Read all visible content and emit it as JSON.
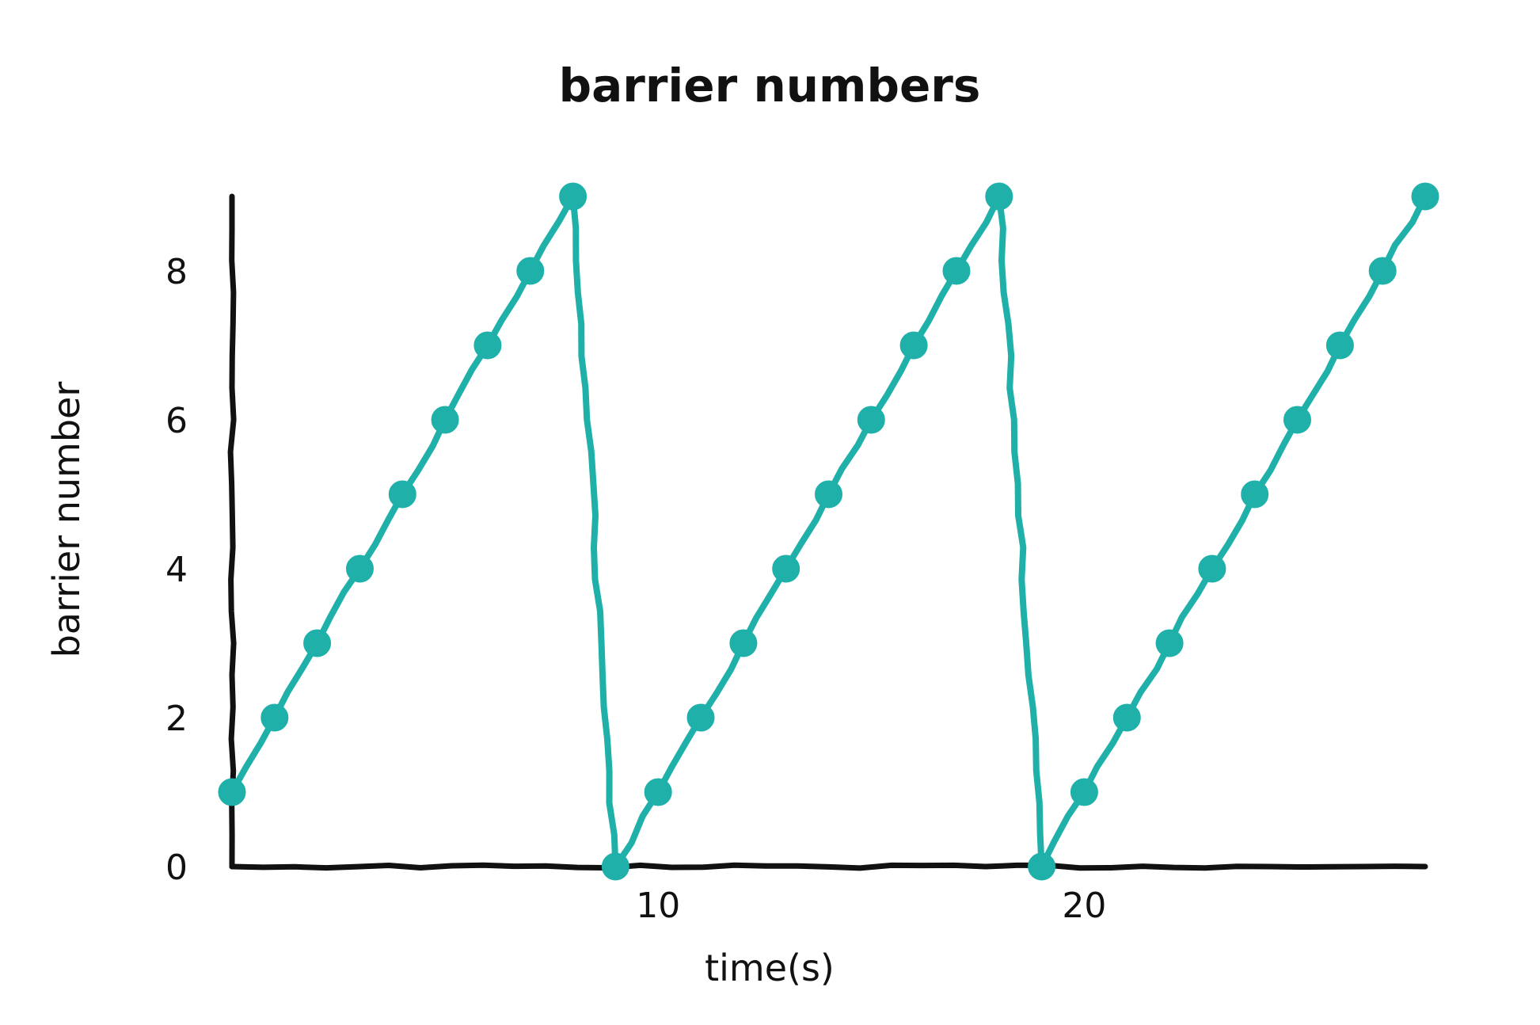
{
  "chart_data": {
    "type": "line",
    "title": "barrier numbers",
    "xlabel": "time(s)",
    "ylabel": "barrier number",
    "x": [
      0,
      1,
      2,
      3,
      4,
      5,
      6,
      7,
      8,
      9,
      10,
      11,
      12,
      13,
      14,
      15,
      16,
      17,
      18,
      19,
      20,
      21,
      22,
      23,
      24,
      25,
      26,
      27,
      28
    ],
    "series": [
      {
        "values": [
          1,
          2,
          3,
          4,
          5,
          6,
          7,
          8,
          9,
          0,
          1,
          2,
          3,
          4,
          5,
          6,
          7,
          8,
          9,
          0,
          1,
          2,
          3,
          4,
          5,
          6,
          7,
          8,
          9
        ]
      }
    ],
    "xticks": [
      10,
      20
    ],
    "xtick_labels": [
      "10",
      "20"
    ],
    "yticks": [
      0,
      2,
      4,
      6,
      8
    ],
    "ytick_labels": [
      "0",
      "2",
      "4",
      "6",
      "8"
    ],
    "xlim": [
      0,
      28
    ],
    "ylim": [
      0,
      9
    ],
    "grid": false,
    "style": "hand-drawn",
    "colors": {
      "series": "#1fb0aa",
      "axes": "#111111"
    }
  }
}
